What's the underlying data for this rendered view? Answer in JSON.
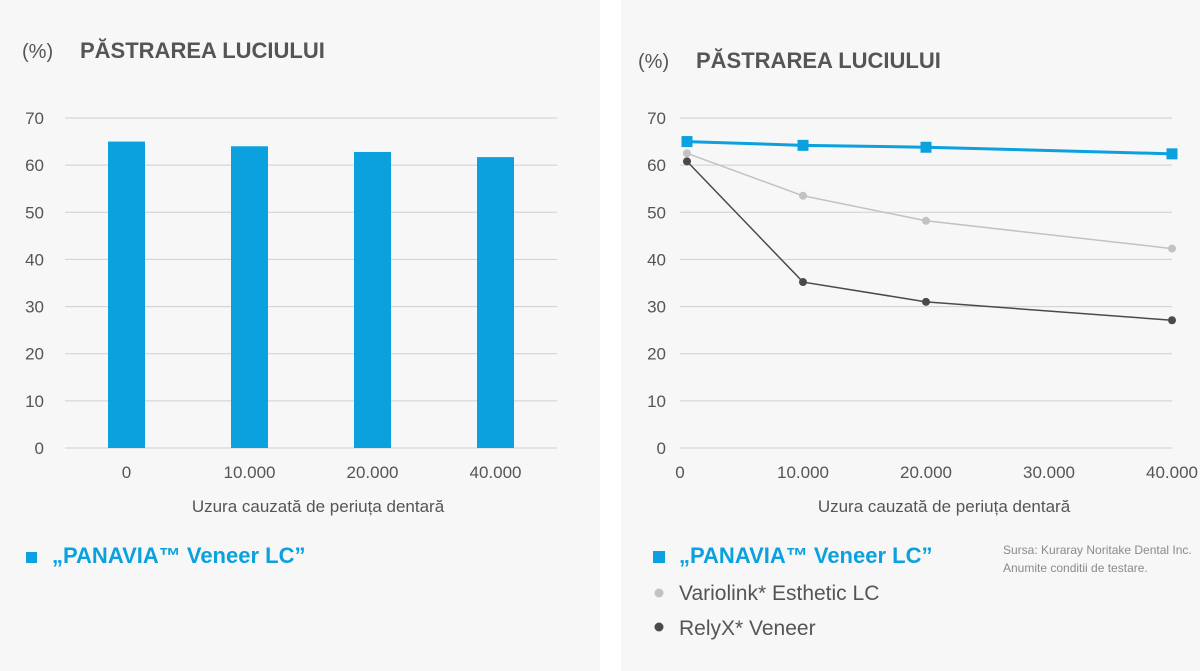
{
  "colors": {
    "panavia": "#0aa1de",
    "variolink": "#c2c2c2",
    "relyx": "#4a4a4a"
  },
  "chart_data": [
    {
      "type": "bar",
      "unit_label": "(%)",
      "title": "PĂSTRAREA LUCIULUI",
      "categories": [
        "0",
        "10.000",
        "20.000",
        "40.000"
      ],
      "series": [
        {
          "name": "„PANAVIA™ Veneer LC”",
          "values": [
            65,
            64,
            62.8,
            61.7
          ]
        }
      ],
      "xlabel": "Uzura cauzată de  periuța dentară",
      "ylabel": "(%)",
      "ylim": [
        0,
        70
      ],
      "yticks": [
        "0",
        "10",
        "20",
        "30",
        "40",
        "50",
        "60",
        "70"
      ],
      "grid": true,
      "legend": [
        "„PANAVIA™ Veneer LC”"
      ]
    },
    {
      "type": "line",
      "unit_label": "(%)",
      "title": "PĂSTRAREA LUCIULUI",
      "x": [
        0,
        10000,
        20000,
        40000
      ],
      "xticks": [
        "0",
        "10.000",
        "20.000",
        "30.000",
        "40.000"
      ],
      "xtick_values": [
        0,
        10000,
        20000,
        30000,
        40000
      ],
      "series": [
        {
          "name": "„PANAVIA™ Veneer LC”",
          "values": [
            65,
            64.2,
            63.8,
            62.4
          ]
        },
        {
          "name": "Variolink* Esthetic LC",
          "values": [
            62.5,
            53.5,
            48.2,
            42.3
          ]
        },
        {
          "name": "RelyX* Veneer",
          "values": [
            60.8,
            35.2,
            31.0,
            27.1
          ]
        }
      ],
      "xlabel": "Uzura cauzată de  periuța dentară",
      "ylabel": "(%)",
      "xlim": [
        0,
        40000
      ],
      "ylim": [
        0,
        70
      ],
      "yticks": [
        "0",
        "10",
        "20",
        "30",
        "40",
        "50",
        "60",
        "70"
      ],
      "grid": true,
      "legend": [
        "„PANAVIA™ Veneer LC”",
        "Variolink* Esthetic LC",
        "RelyX* Veneer"
      ]
    }
  ],
  "source_note": [
    "Sursa: Kuraray Noritake Dental Inc.",
    "Anumite conditii de testare."
  ]
}
